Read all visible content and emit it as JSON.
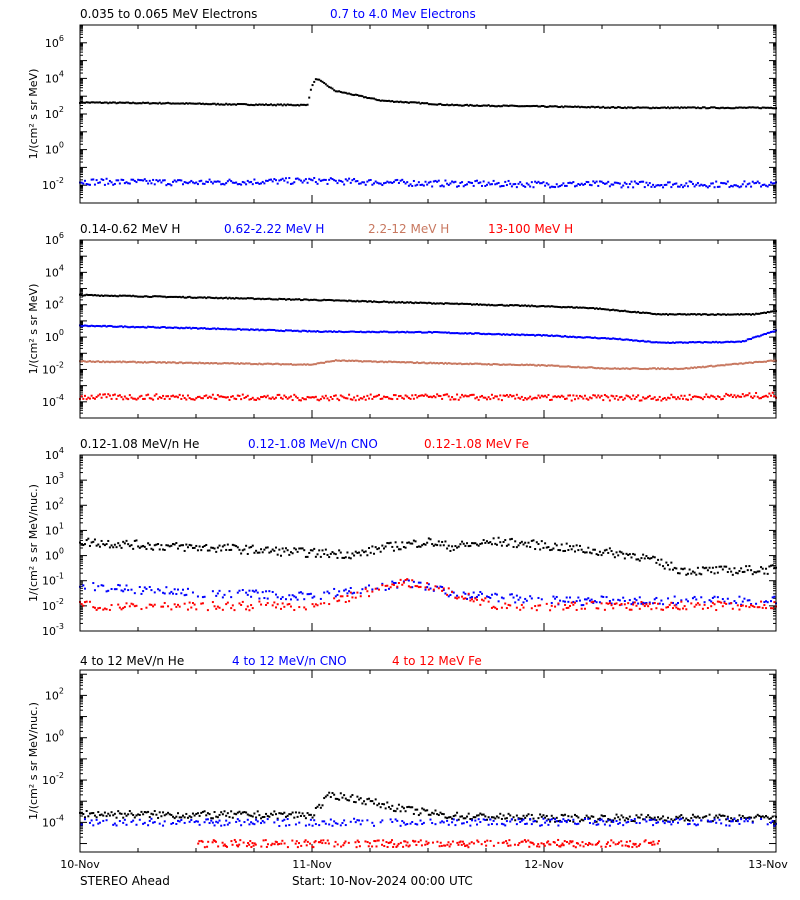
{
  "chart_data": [
    {
      "type": "scatter",
      "ylabel": "1/(cm² s sr MeV)",
      "y_scale": "log",
      "ylim_log10": [
        -3,
        7
      ],
      "ytick_exponents": [
        -2,
        0,
        2,
        4,
        6
      ],
      "legend_position": "top-left",
      "series": [
        {
          "name": "0.035 to 0.065 MeV Electrons",
          "color": "#000000",
          "x": [
            0,
            0.2,
            0.4,
            0.6,
            0.8,
            0.98,
            1.0,
            1.02,
            1.1,
            1.3,
            1.6,
            2.0,
            2.4,
            2.8,
            3.0
          ],
          "y_log10": [
            2.65,
            2.62,
            2.6,
            2.55,
            2.52,
            2.5,
            3.6,
            4.0,
            3.3,
            2.75,
            2.5,
            2.42,
            2.35,
            2.35,
            2.35
          ]
        },
        {
          "name": "0.7 to 4.0 Mev Electrons",
          "color": "#0000ff",
          "x": [
            0,
            0.5,
            1.0,
            1.5,
            2.0,
            2.5,
            3.0
          ],
          "y_log10": [
            -1.8,
            -1.85,
            -1.75,
            -1.9,
            -1.95,
            -1.95,
            -1.95
          ]
        }
      ]
    },
    {
      "type": "scatter",
      "ylabel": "1/(cm² s sr MeV)",
      "y_scale": "log",
      "ylim_log10": [
        -5,
        6
      ],
      "ytick_exponents": [
        -4,
        -2,
        0,
        2,
        4,
        6
      ],
      "legend_position": "top-left",
      "series": [
        {
          "name": "0.14-0.62 MeV H",
          "color": "#000000",
          "x": [
            0,
            0.5,
            1.0,
            1.5,
            2.0,
            2.2,
            2.5,
            2.9,
            3.0
          ],
          "y_log10": [
            2.6,
            2.45,
            2.3,
            2.1,
            1.9,
            1.8,
            1.4,
            1.4,
            1.6
          ]
        },
        {
          "name": "0.62-2.22 MeV H",
          "color": "#0000ff",
          "x": [
            0,
            0.5,
            1.0,
            1.5,
            2.0,
            2.3,
            2.5,
            2.85,
            3.0
          ],
          "y_log10": [
            0.7,
            0.55,
            0.35,
            0.3,
            0.1,
            -0.1,
            -0.35,
            -0.3,
            0.4
          ]
        },
        {
          "name": "2.2-12 MeV H",
          "color": "#c87860",
          "x": [
            0,
            0.5,
            1.0,
            1.1,
            1.5,
            2.0,
            2.3,
            2.6,
            3.0
          ],
          "y_log10": [
            -1.5,
            -1.6,
            -1.7,
            -1.45,
            -1.6,
            -1.75,
            -1.95,
            -1.95,
            -1.45
          ]
        },
        {
          "name": "13-100 MeV H",
          "color": "#ff0000",
          "x": [
            0,
            0.5,
            1.0,
            1.5,
            2.0,
            2.5,
            3.0
          ],
          "y_log10": [
            -3.7,
            -3.7,
            -3.75,
            -3.7,
            -3.75,
            -3.75,
            -3.6
          ]
        }
      ]
    },
    {
      "type": "scatter",
      "ylabel": "1/(cm² s sr MeV/nuc.)",
      "y_scale": "log",
      "ylim_log10": [
        -3,
        4
      ],
      "ytick_exponents": [
        -3,
        -2,
        -1,
        0,
        1,
        2,
        3,
        4
      ],
      "legend_position": "top-left",
      "series": [
        {
          "name": "0.12-1.08 MeV/n He",
          "color": "#000000",
          "x": [
            0,
            0.2,
            0.4,
            0.6,
            0.8,
            1.0,
            1.2,
            1.3,
            1.5,
            1.6,
            1.8,
            2.0,
            2.2,
            2.4,
            2.6,
            2.8,
            3.0
          ],
          "y_log10": [
            0.55,
            0.45,
            0.35,
            0.3,
            0.2,
            0.1,
            0.05,
            0.3,
            0.55,
            0.35,
            0.55,
            0.4,
            0.2,
            0.0,
            -0.6,
            -0.6,
            -0.55
          ]
        },
        {
          "name": "0.12-1.08 MeV/n CNO",
          "color": "#0000ff",
          "x": [
            0,
            0.3,
            0.6,
            1.0,
            1.4,
            1.6,
            2.0,
            2.5,
            3.0
          ],
          "y_log10": [
            -1.2,
            -1.4,
            -1.5,
            -1.6,
            -1.1,
            -1.5,
            -1.8,
            -1.8,
            -1.8
          ]
        },
        {
          "name": "0.12-1.08 MeV Fe",
          "color": "#ff0000",
          "x": [
            0,
            0.5,
            1.0,
            1.4,
            1.5,
            1.8,
            2.2,
            2.6,
            3.0
          ],
          "y_log10": [
            -2.0,
            -2.0,
            -2.0,
            -1.1,
            -1.2,
            -2.0,
            -2.0,
            -2.0,
            -2.0
          ]
        }
      ]
    },
    {
      "type": "scatter",
      "ylabel": "1/(cm² s sr MeV/nuc.)",
      "y_scale": "log",
      "ylim_log10": [
        -5.4,
        3.2
      ],
      "ytick_exponents": [
        -4,
        -2,
        0,
        2
      ],
      "legend_position": "top-left",
      "series": [
        {
          "name": "4 to 12 MeV/n He",
          "color": "#000000",
          "x": [
            0,
            0.5,
            1.0,
            1.08,
            1.2,
            1.4,
            1.6,
            2.0,
            2.5,
            3.0
          ],
          "y_log10": [
            -3.6,
            -3.65,
            -3.65,
            -2.7,
            -2.9,
            -3.4,
            -3.7,
            -3.8,
            -3.8,
            -3.8
          ]
        },
        {
          "name": "4 to 12 MeV/n CNO",
          "color": "#0000ff",
          "x": [
            0,
            1.0,
            2.0,
            3.0
          ],
          "y_log10": [
            -4.0,
            -4.0,
            -4.0,
            -4.0
          ]
        },
        {
          "name": "4 to 12 MeV Fe",
          "color": "#ff0000",
          "x": [
            0.5,
            1.5,
            2.5
          ],
          "y_log10": [
            -5.0,
            -5.0,
            -5.0
          ]
        }
      ]
    }
  ],
  "x_axis": {
    "tick_labels": [
      "10-Nov",
      "11-Nov",
      "12-Nov",
      "13-Nov"
    ],
    "range_days": [
      0,
      3
    ]
  },
  "footer": {
    "mission": "STEREO Ahead",
    "start": "Start: 10-Nov-2024 00:00 UTC"
  }
}
